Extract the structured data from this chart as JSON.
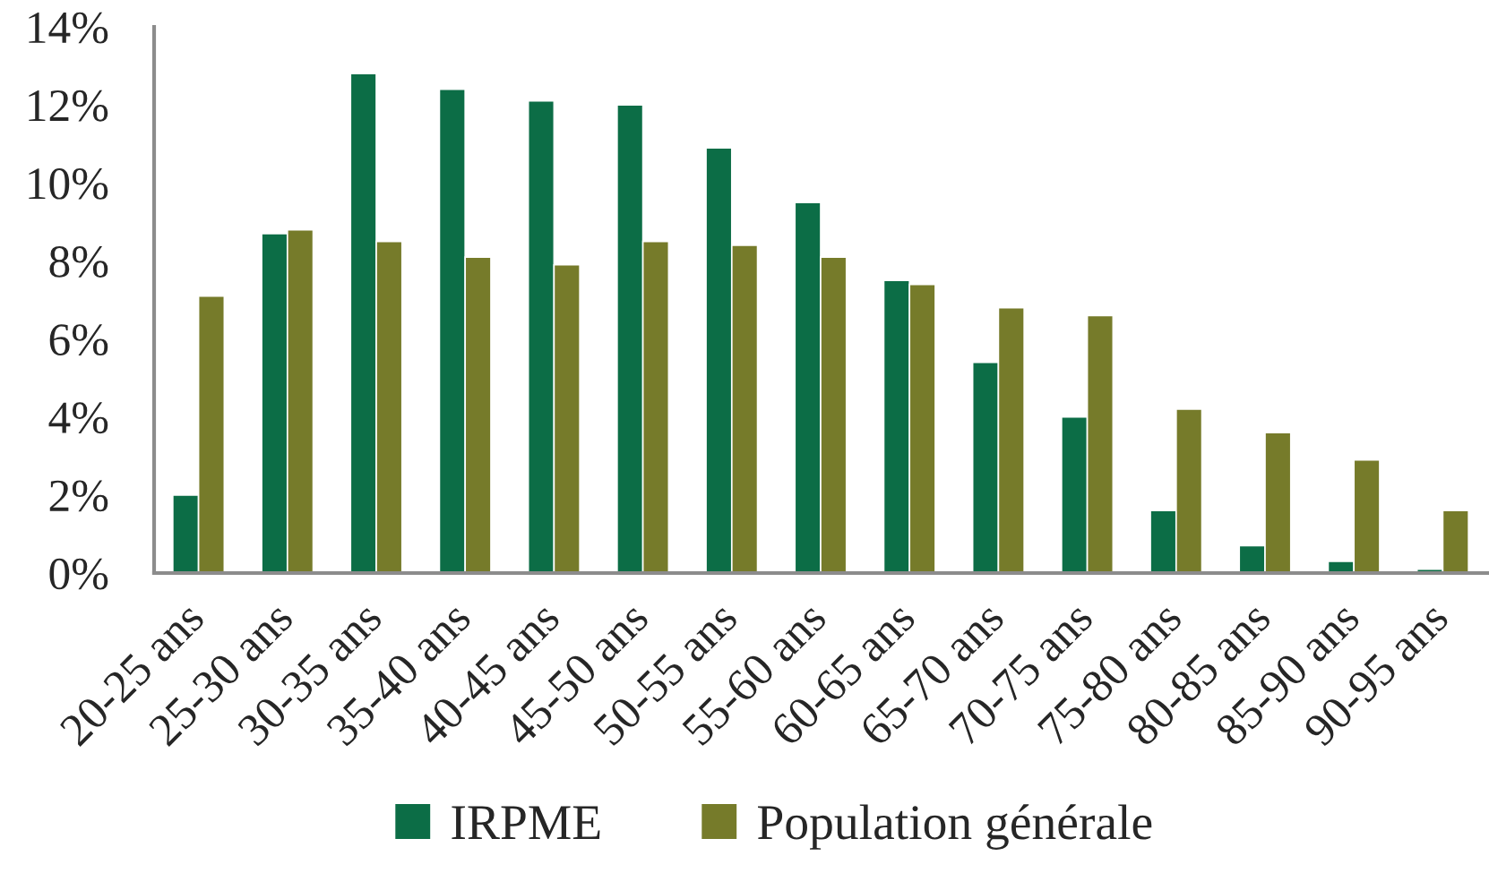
{
  "chart_data": {
    "type": "bar",
    "categories": [
      "20-25 ans",
      "25-30 ans",
      "30-35 ans",
      "35-40 ans",
      "40-45 ans",
      "45-50 ans",
      "50-55 ans",
      "55-60 ans",
      "60-65 ans",
      "65-70 ans",
      "70-75 ans",
      "75-80 ans",
      "80-85 ans",
      "85-90 ans",
      "90-95 ans"
    ],
    "series": [
      {
        "name": "IRPME",
        "color": "#0c6d46",
        "values": [
          2.0,
          8.7,
          12.8,
          12.4,
          12.1,
          12.0,
          10.9,
          9.5,
          7.5,
          5.4,
          4.0,
          1.6,
          0.7,
          0.3,
          0.1
        ]
      },
      {
        "name": "Population générale",
        "color": "#767b2a",
        "values": [
          7.1,
          8.8,
          8.5,
          8.1,
          7.9,
          8.5,
          8.4,
          8.1,
          7.4,
          6.8,
          6.6,
          4.2,
          3.6,
          2.9,
          1.6
        ]
      }
    ],
    "ylim": [
      0,
      14
    ],
    "yticks": [
      {
        "value": 0,
        "label": "0%"
      },
      {
        "value": 2,
        "label": "2%"
      },
      {
        "value": 4,
        "label": "4%"
      },
      {
        "value": 6,
        "label": "6%"
      },
      {
        "value": 8,
        "label": "8%"
      },
      {
        "value": 10,
        "label": "10%"
      },
      {
        "value": 12,
        "label": "12%"
      },
      {
        "value": 14,
        "label": "14%"
      }
    ],
    "legend": "bottom"
  }
}
